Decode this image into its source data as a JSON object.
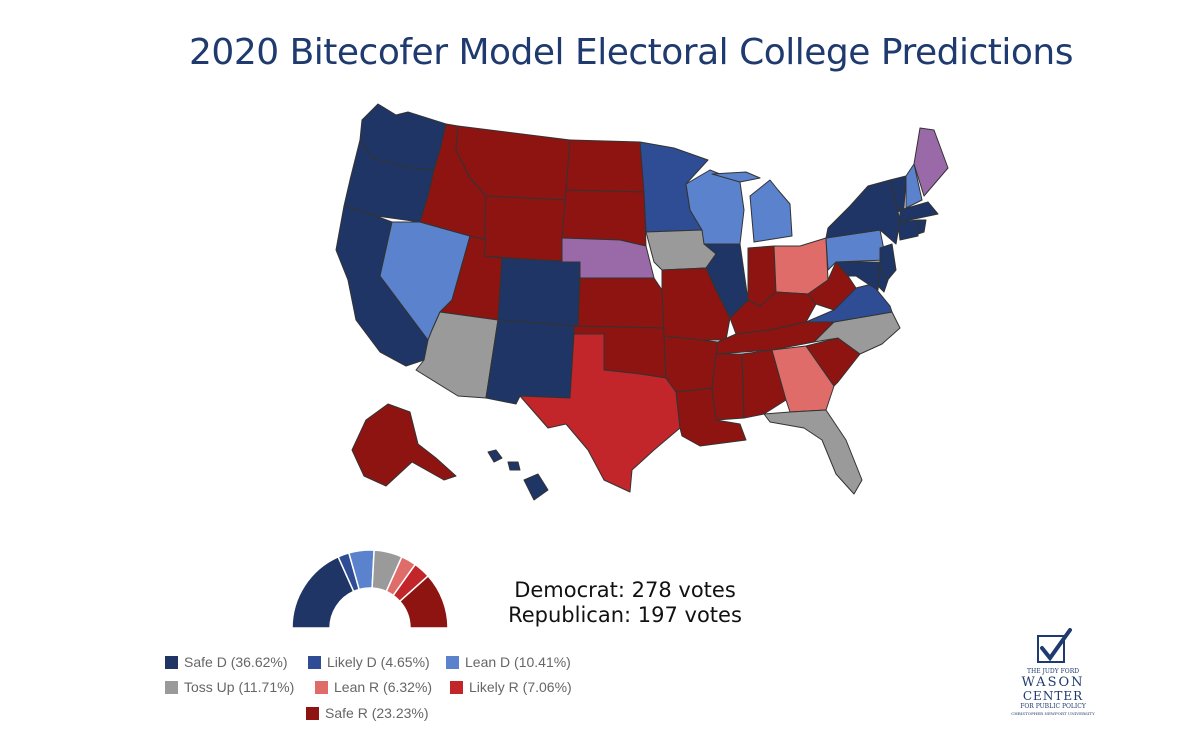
{
  "title": "2020 Bitecofer Model Electoral College Predictions",
  "totals": {
    "democrat": "Democrat: 278 votes",
    "republican": "Republican: 197 votes"
  },
  "colors": {
    "safe_d": "#1f3566",
    "likely_d": "#2f4d95",
    "lean_d": "#5b82cc",
    "toss_up": "#9a9a9a",
    "lean_r": "#e06c6a",
    "likely_r": "#c2262a",
    "safe_r": "#8e1412",
    "ne_me": "#9a6aa8"
  },
  "legend": [
    {
      "key": "safe_d",
      "label": "Safe D (36.62%)",
      "pct": 36.62
    },
    {
      "key": "likely_d",
      "label": "Likely D (4.65%)",
      "pct": 4.65
    },
    {
      "key": "lean_d",
      "label": "Lean D (10.41%)",
      "pct": 10.41
    },
    {
      "key": "toss_up",
      "label": "Toss Up (11.71%)",
      "pct": 11.71
    },
    {
      "key": "lean_r",
      "label": "Lean R (6.32%)",
      "pct": 6.32
    },
    {
      "key": "likely_r",
      "label": "Likely R (7.06%)",
      "pct": 7.06
    },
    {
      "key": "safe_r",
      "label": "Safe R (23.23%)",
      "pct": 23.23
    }
  ],
  "states": {
    "WA": "safe_d",
    "OR": "safe_d",
    "CA": "safe_d",
    "NV": "lean_d",
    "ID": "safe_r",
    "MT": "safe_r",
    "WY": "safe_r",
    "UT": "safe_r",
    "AZ": "toss_up",
    "CO": "safe_d",
    "NM": "safe_d",
    "ND": "safe_r",
    "SD": "safe_r",
    "NE": "ne_me",
    "KS": "safe_r",
    "OK": "safe_r",
    "TX": "likely_r",
    "MN": "likely_d",
    "IA": "toss_up",
    "MO": "safe_r",
    "AR": "safe_r",
    "LA": "safe_r",
    "WI": "lean_d",
    "IL": "safe_d",
    "MI": "lean_d",
    "IN": "safe_r",
    "OH": "lean_r",
    "KY": "safe_r",
    "TN": "safe_r",
    "MS": "safe_r",
    "AL": "safe_r",
    "GA": "lean_r",
    "FL": "toss_up",
    "SC": "safe_r",
    "NC": "toss_up",
    "VA": "likely_d",
    "WV": "safe_r",
    "PA": "lean_d",
    "NY": "safe_d",
    "VT": "safe_d",
    "NH": "lean_d",
    "ME": "ne_me",
    "MA": "safe_d",
    "CT": "safe_d",
    "RI": "safe_d",
    "NJ": "safe_d",
    "DE": "safe_d",
    "MD": "safe_d",
    "AK": "safe_r",
    "HI": "safe_d"
  },
  "logo": {
    "line1": "THE JUDY FORD",
    "line2": "WASON",
    "line3": "CENTER",
    "line4": "FOR PUBLIC POLICY",
    "line5": "CHRISTOPHER NEWPORT UNIVERSITY",
    "check_icon": "checkmark-icon"
  }
}
